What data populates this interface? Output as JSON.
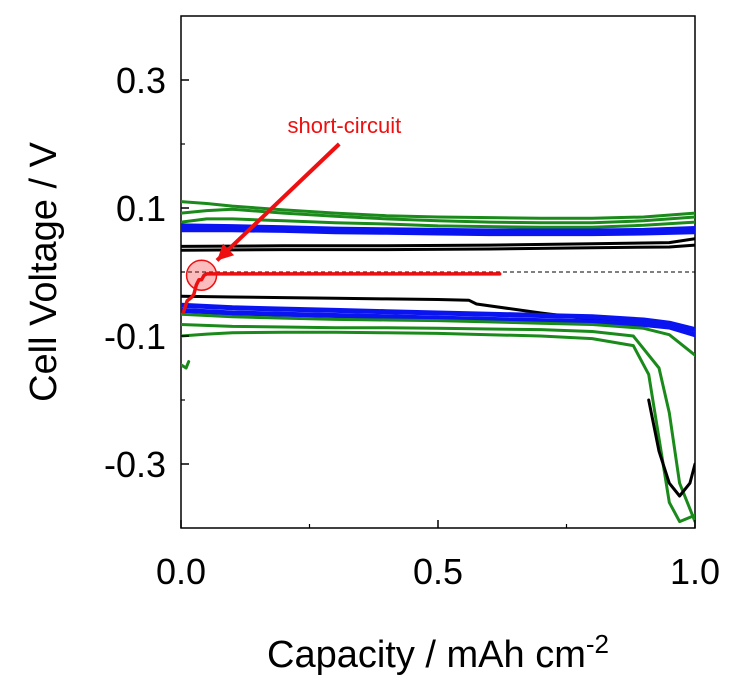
{
  "chart_data": {
    "type": "line",
    "title": "",
    "xlabel": "Capacity / mAh cm",
    "xlabel_superscript": "-2",
    "ylabel": "Cell Voltage / V",
    "xlim": [
      0.0,
      1.0
    ],
    "ylim": [
      -0.4,
      0.4
    ],
    "x_ticks": [
      {
        "value": 0.0,
        "label": "0.0"
      },
      {
        "value": 0.5,
        "label": "0.5"
      },
      {
        "value": 1.0,
        "label": "1.0"
      }
    ],
    "y_ticks": [
      {
        "value": 0.3,
        "label": "0.3"
      },
      {
        "value": 0.1,
        "label": "0.1"
      },
      {
        "value": -0.1,
        "label": "-0.1"
      },
      {
        "value": -0.3,
        "label": "-0.3"
      }
    ],
    "grid": false,
    "reference_line": {
      "y": 0.0,
      "style": "dashed"
    },
    "colors": {
      "green": "#1a8a1a",
      "blue": "#0a14f0",
      "black": "#000000",
      "red": "#ee1010"
    },
    "series": [
      {
        "color": "green",
        "points": [
          [
            0.0,
            0.11
          ],
          [
            0.05,
            0.107
          ],
          [
            0.1,
            0.103
          ],
          [
            0.2,
            0.097
          ],
          [
            0.3,
            0.092
          ],
          [
            0.4,
            0.088
          ],
          [
            0.5,
            0.086
          ],
          [
            0.6,
            0.085
          ],
          [
            0.7,
            0.084
          ],
          [
            0.8,
            0.084
          ],
          [
            0.9,
            0.086
          ],
          [
            1.0,
            0.092
          ]
        ]
      },
      {
        "color": "green",
        "points": [
          [
            0.0,
            0.092
          ],
          [
            0.05,
            0.096
          ],
          [
            0.1,
            0.098
          ],
          [
            0.2,
            0.092
          ],
          [
            0.3,
            0.087
          ],
          [
            0.4,
            0.083
          ],
          [
            0.5,
            0.08
          ],
          [
            0.6,
            0.078
          ],
          [
            0.7,
            0.077
          ],
          [
            0.8,
            0.077
          ],
          [
            0.9,
            0.08
          ],
          [
            1.0,
            0.086
          ]
        ]
      },
      {
        "color": "green",
        "points": [
          [
            0.0,
            0.078
          ],
          [
            0.05,
            0.083
          ],
          [
            0.1,
            0.083
          ],
          [
            0.2,
            0.08
          ],
          [
            0.3,
            0.077
          ],
          [
            0.4,
            0.075
          ],
          [
            0.5,
            0.072
          ],
          [
            0.6,
            0.071
          ],
          [
            0.7,
            0.07
          ],
          [
            0.8,
            0.07
          ],
          [
            0.9,
            0.073
          ],
          [
            1.0,
            0.078
          ]
        ]
      },
      {
        "color": "blue",
        "points": [
          [
            0.0,
            0.072
          ],
          [
            0.1,
            0.071
          ],
          [
            0.2,
            0.069
          ],
          [
            0.3,
            0.067
          ],
          [
            0.4,
            0.066
          ],
          [
            0.5,
            0.065
          ],
          [
            0.6,
            0.064
          ],
          [
            0.7,
            0.064
          ],
          [
            0.8,
            0.064
          ],
          [
            0.9,
            0.065
          ],
          [
            1.0,
            0.068
          ]
        ]
      },
      {
        "color": "blue",
        "points": [
          [
            0.0,
            0.066
          ],
          [
            0.1,
            0.066
          ],
          [
            0.2,
            0.065
          ],
          [
            0.3,
            0.063
          ],
          [
            0.4,
            0.062
          ],
          [
            0.5,
            0.061
          ],
          [
            0.6,
            0.06
          ],
          [
            0.7,
            0.06
          ],
          [
            0.8,
            0.06
          ],
          [
            0.9,
            0.061
          ],
          [
            1.0,
            0.063
          ]
        ]
      },
      {
        "color": "black",
        "points": [
          [
            0.0,
            0.04
          ],
          [
            0.2,
            0.041
          ],
          [
            0.4,
            0.041
          ],
          [
            0.6,
            0.042
          ],
          [
            0.8,
            0.044
          ],
          [
            0.95,
            0.046
          ],
          [
            1.0,
            0.052
          ]
        ]
      },
      {
        "color": "black",
        "points": [
          [
            0.0,
            0.034
          ],
          [
            0.2,
            0.035
          ],
          [
            0.4,
            0.035
          ],
          [
            0.6,
            0.036
          ],
          [
            0.8,
            0.038
          ],
          [
            0.95,
            0.039
          ],
          [
            1.0,
            0.042
          ]
        ]
      },
      {
        "color": "black",
        "points": [
          [
            0.0,
            -0.038
          ],
          [
            0.1,
            -0.039
          ],
          [
            0.2,
            -0.04
          ],
          [
            0.3,
            -0.041
          ],
          [
            0.4,
            -0.042
          ],
          [
            0.5,
            -0.043
          ],
          [
            0.56,
            -0.044
          ],
          [
            0.575,
            -0.05
          ],
          [
            0.7,
            -0.064
          ],
          [
            0.8,
            -0.074
          ],
          [
            0.9,
            -0.08
          ],
          [
            0.95,
            -0.083
          ],
          [
            1.0,
            -0.09
          ]
        ]
      },
      {
        "color": "blue",
        "points": [
          [
            0.0,
            -0.052
          ],
          [
            0.1,
            -0.056
          ],
          [
            0.2,
            -0.058
          ],
          [
            0.3,
            -0.06
          ],
          [
            0.4,
            -0.062
          ],
          [
            0.5,
            -0.064
          ],
          [
            0.6,
            -0.066
          ],
          [
            0.7,
            -0.068
          ],
          [
            0.8,
            -0.07
          ],
          [
            0.9,
            -0.075
          ],
          [
            0.95,
            -0.08
          ],
          [
            1.0,
            -0.09
          ]
        ]
      },
      {
        "color": "blue",
        "points": [
          [
            0.0,
            -0.06
          ],
          [
            0.1,
            -0.064
          ],
          [
            0.2,
            -0.066
          ],
          [
            0.3,
            -0.068
          ],
          [
            0.4,
            -0.07
          ],
          [
            0.5,
            -0.072
          ],
          [
            0.6,
            -0.074
          ],
          [
            0.7,
            -0.076
          ],
          [
            0.8,
            -0.078
          ],
          [
            0.9,
            -0.082
          ],
          [
            0.95,
            -0.086
          ],
          [
            1.0,
            -0.098
          ]
        ]
      },
      {
        "color": "green",
        "points": [
          [
            0.0,
            -0.066
          ],
          [
            0.1,
            -0.07
          ],
          [
            0.2,
            -0.072
          ],
          [
            0.3,
            -0.074
          ],
          [
            0.4,
            -0.075
          ],
          [
            0.5,
            -0.076
          ],
          [
            0.6,
            -0.078
          ],
          [
            0.7,
            -0.08
          ],
          [
            0.8,
            -0.082
          ],
          [
            0.9,
            -0.088
          ],
          [
            0.95,
            -0.098
          ],
          [
            1.0,
            -0.13
          ]
        ]
      },
      {
        "color": "green",
        "points": [
          [
            0.0,
            -0.082
          ],
          [
            0.1,
            -0.085
          ],
          [
            0.2,
            -0.086
          ],
          [
            0.3,
            -0.087
          ],
          [
            0.4,
            -0.087
          ],
          [
            0.5,
            -0.088
          ],
          [
            0.6,
            -0.089
          ],
          [
            0.7,
            -0.09
          ],
          [
            0.8,
            -0.093
          ],
          [
            0.88,
            -0.1
          ],
          [
            0.93,
            -0.15
          ],
          [
            0.95,
            -0.22
          ],
          [
            0.97,
            -0.33
          ],
          [
            0.99,
            -0.37
          ],
          [
            1.0,
            -0.39
          ]
        ]
      },
      {
        "color": "green",
        "points": [
          [
            0.0,
            -0.1
          ],
          [
            0.05,
            -0.097
          ],
          [
            0.1,
            -0.095
          ],
          [
            0.2,
            -0.094
          ],
          [
            0.3,
            -0.094
          ],
          [
            0.4,
            -0.095
          ],
          [
            0.5,
            -0.096
          ],
          [
            0.6,
            -0.098
          ],
          [
            0.7,
            -0.1
          ],
          [
            0.8,
            -0.104
          ],
          [
            0.88,
            -0.115
          ],
          [
            0.91,
            -0.16
          ],
          [
            0.93,
            -0.26
          ],
          [
            0.95,
            -0.36
          ],
          [
            0.97,
            -0.39
          ],
          [
            1.0,
            -0.38
          ]
        ]
      },
      {
        "color": "green",
        "points": [
          [
            0.0,
            -0.145
          ],
          [
            0.01,
            -0.15
          ],
          [
            0.015,
            -0.14
          ]
        ]
      },
      {
        "color": "black",
        "points": [
          [
            0.91,
            -0.2
          ],
          [
            0.93,
            -0.28
          ],
          [
            0.95,
            -0.33
          ],
          [
            0.97,
            -0.35
          ],
          [
            0.99,
            -0.33
          ],
          [
            1.0,
            -0.3
          ]
        ]
      },
      {
        "color": "red",
        "points": [
          [
            0.005,
            -0.062
          ],
          [
            0.012,
            -0.045
          ],
          [
            0.02,
            -0.04
          ],
          [
            0.025,
            -0.035
          ],
          [
            0.03,
            -0.02
          ],
          [
            0.035,
            -0.012
          ],
          [
            0.04,
            -0.012
          ],
          [
            0.045,
            -0.005
          ],
          [
            0.05,
            -0.003
          ],
          [
            0.2,
            -0.003
          ],
          [
            0.4,
            -0.003
          ],
          [
            0.62,
            -0.003
          ]
        ]
      }
    ],
    "highlight_circle": {
      "x": 0.04,
      "y": -0.005
    },
    "annotations": [
      {
        "text": "short-circuit",
        "color": "red",
        "x": 0.24,
        "y": 0.23,
        "arrow_from": [
          0.23,
          0.2
        ],
        "arrow_to": [
          0.07,
          0.018
        ]
      }
    ]
  }
}
